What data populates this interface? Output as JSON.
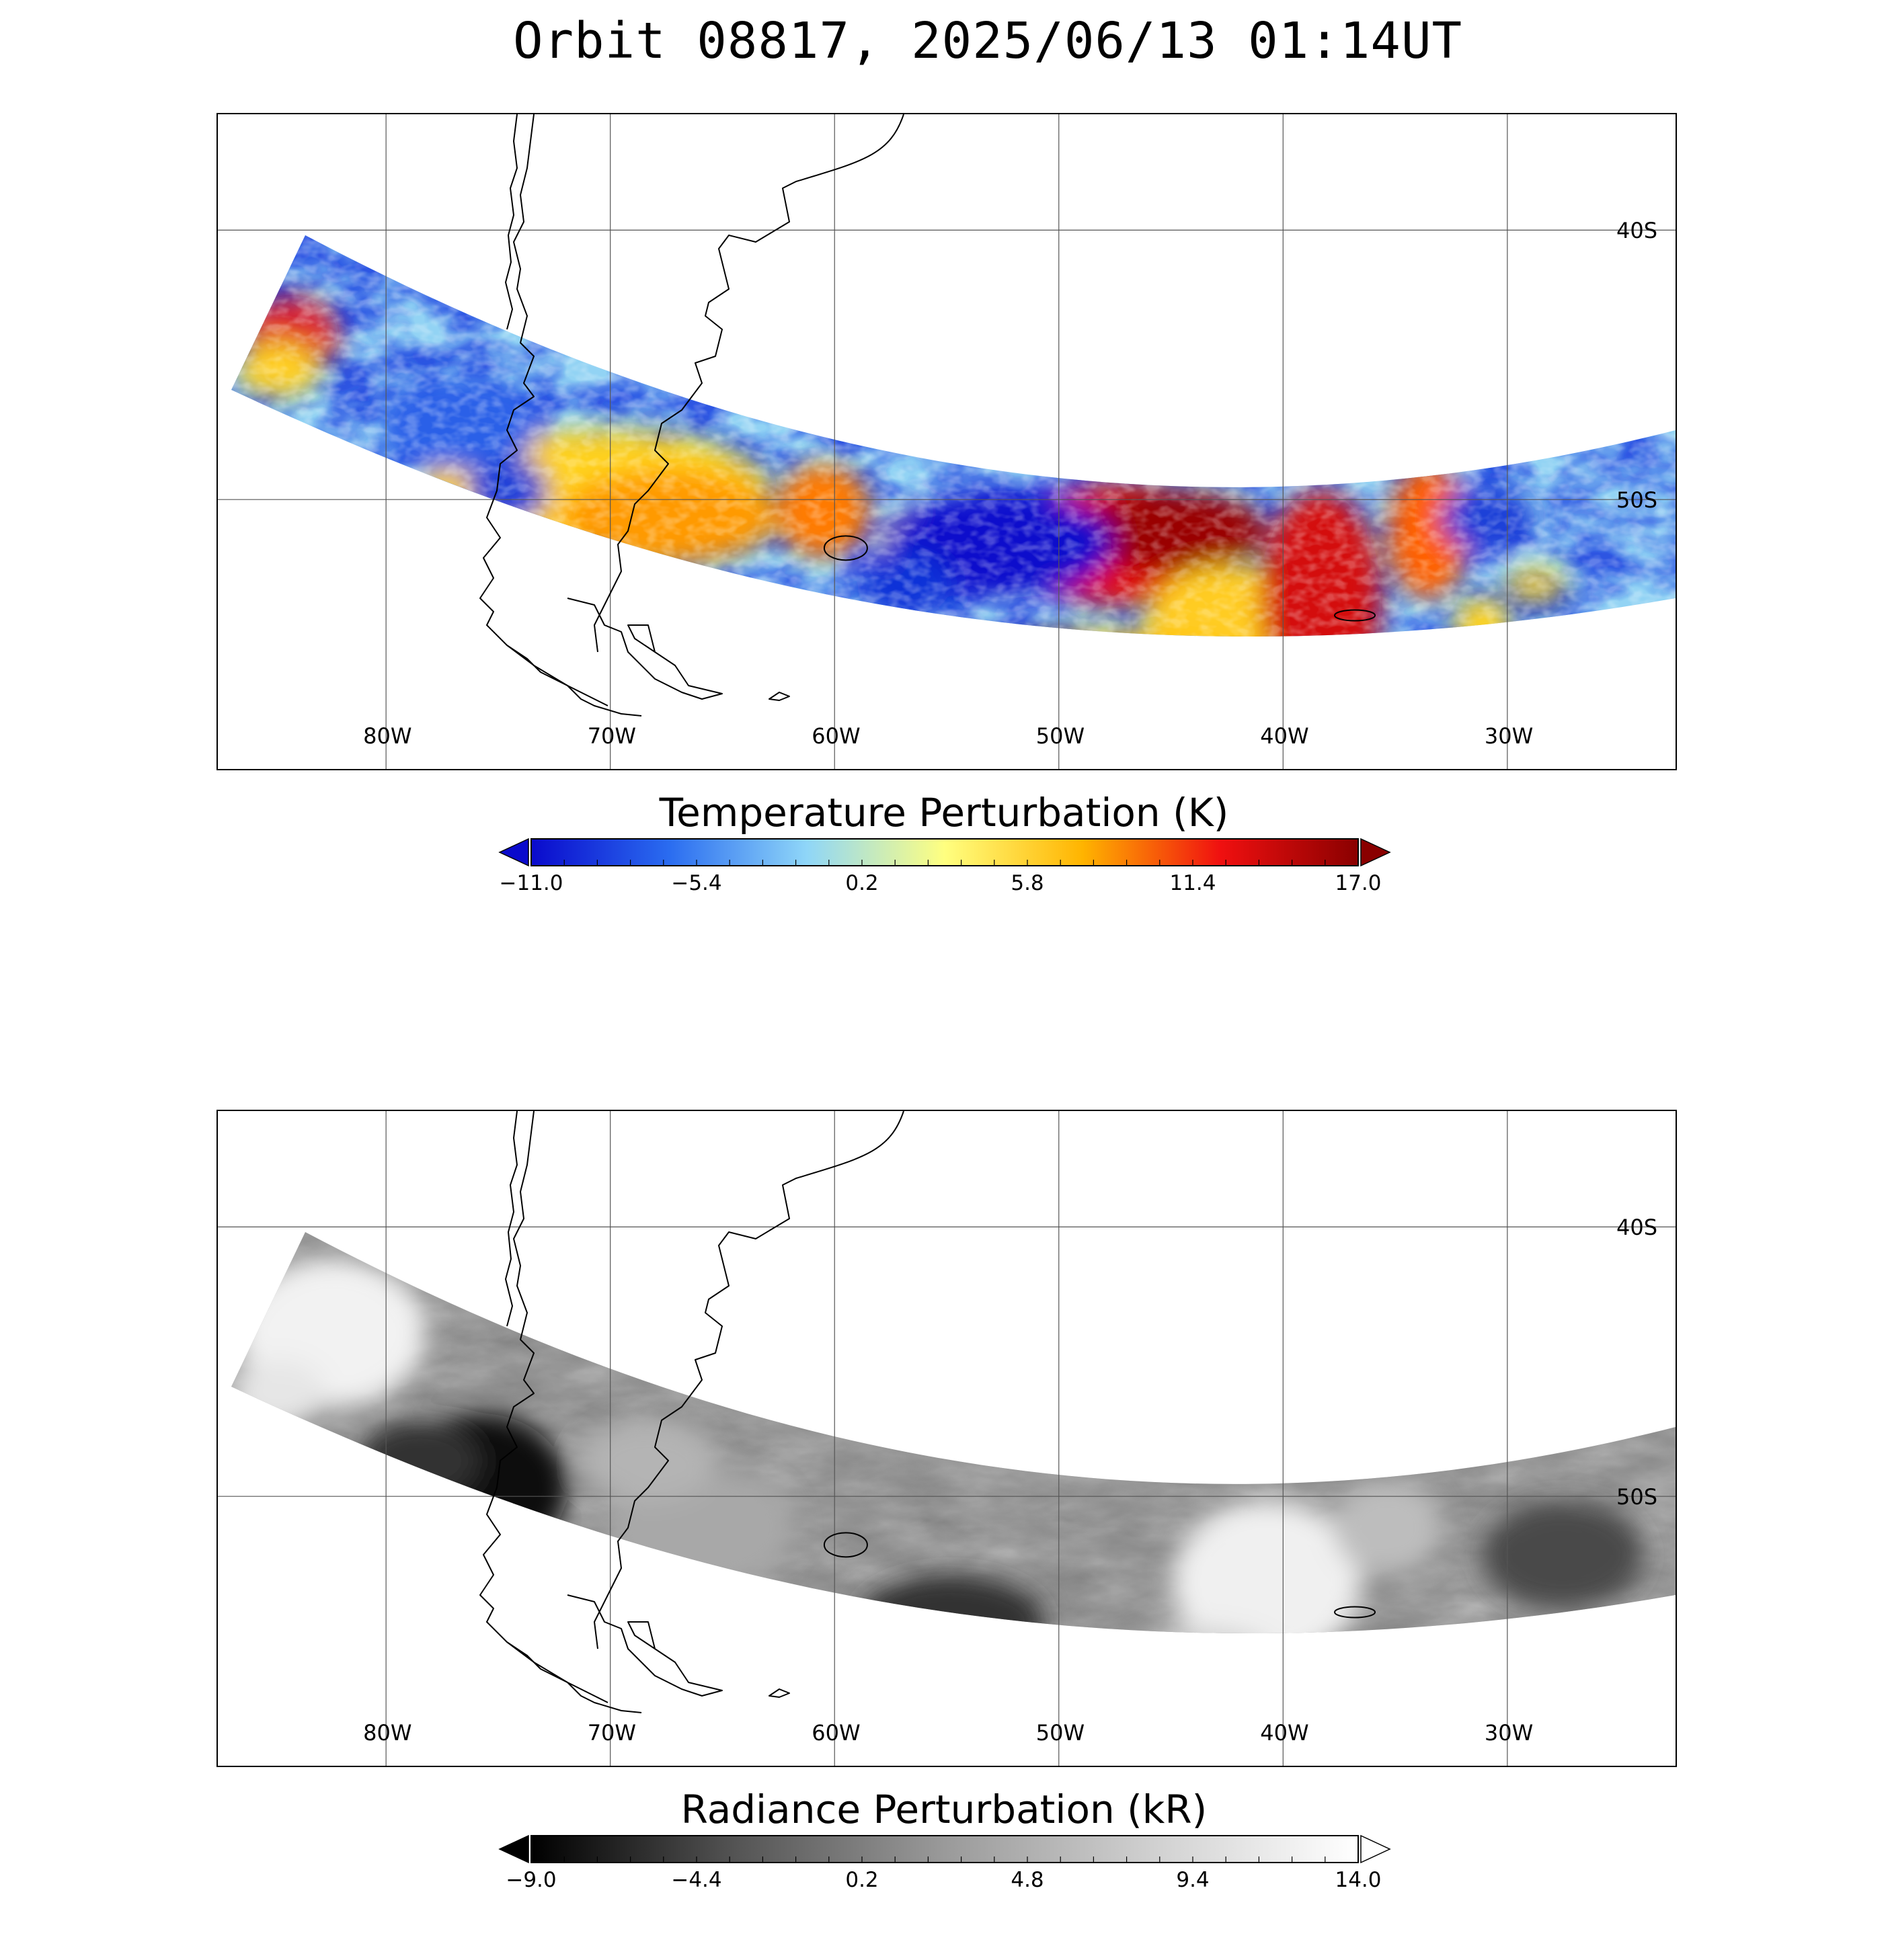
{
  "title": "Orbit 08817, 2025/06/13 01:14UT",
  "map": {
    "lon_range": [
      -87.5,
      -22.5
    ],
    "lat_range": [
      -35.7,
      -60.0
    ],
    "lon_ticks": [
      {
        "value": -80,
        "label": "80W"
      },
      {
        "value": -70,
        "label": "70W"
      },
      {
        "value": -60,
        "label": "60W"
      },
      {
        "value": -50,
        "label": "50W"
      },
      {
        "value": -40,
        "label": "40W"
      },
      {
        "value": -30,
        "label": "30W"
      }
    ],
    "lat_ticks": [
      {
        "value": -40,
        "label": "40S"
      },
      {
        "value": -50,
        "label": "50S"
      }
    ],
    "gridlines": true
  },
  "panels": [
    {
      "id": "temperature",
      "colorbar_title": "Temperature Perturbation (K)",
      "colormap": "blue-cyan-yellow-red",
      "colors": [
        "#0a0acc",
        "#2a6cf0",
        "#8fd6f8",
        "#ffff80",
        "#ffb400",
        "#f01010",
        "#8a0000"
      ],
      "tick_labels": [
        "−11.0",
        "−5.4",
        "0.2",
        "5.8",
        "11.4",
        "17.0"
      ],
      "range": [
        -11.0,
        17.0
      ],
      "extend": "both"
    },
    {
      "id": "radiance",
      "colorbar_title": "Radiance Perturbation (kR)",
      "colormap": "grayscale",
      "colors": [
        "#000000",
        "#555555",
        "#9a9a9a",
        "#d0d0d0",
        "#ffffff"
      ],
      "tick_labels": [
        "−9.0",
        "−4.4",
        "0.2",
        "4.8",
        "9.4",
        "14.0"
      ],
      "range": [
        -9.0,
        14.0
      ],
      "extend": "both"
    }
  ]
}
